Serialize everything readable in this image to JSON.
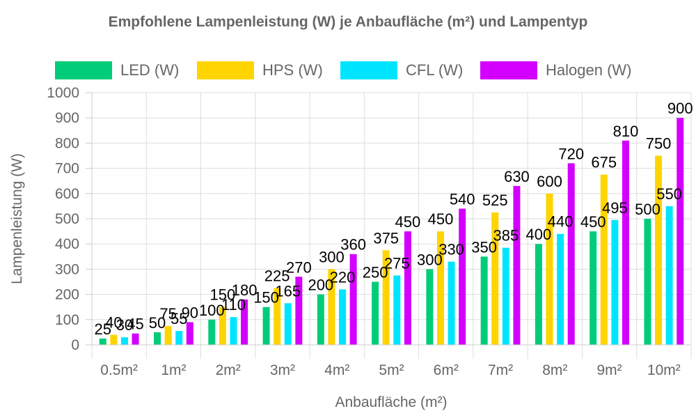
{
  "chart_data": {
    "type": "bar",
    "title": "Empfohlene Lampenleistung (W) je Anbaufläche (m²) und Lampentyp",
    "xlabel": "Anbaufläche (m²)",
    "ylabel": "Lampenleistung (W)",
    "ylim": [
      0,
      1000
    ],
    "y_ticks": [
      "0",
      "100",
      "200",
      "300",
      "400",
      "500",
      "600",
      "700",
      "800",
      "900",
      "1000"
    ],
    "grid": true,
    "legend_position": "top",
    "categories": [
      "0.5m²",
      "1m²",
      "2m²",
      "3m²",
      "4m²",
      "5m²",
      "6m²",
      "7m²",
      "8m²",
      "9m²",
      "10m²"
    ],
    "series": [
      {
        "name": "LED (W)",
        "color": "#00cc7a",
        "values": [
          25,
          50,
          100,
          150,
          200,
          250,
          300,
          350,
          400,
          450,
          500
        ]
      },
      {
        "name": "HPS (W)",
        "color": "#ffd400",
        "values": [
          40,
          75,
          150,
          225,
          300,
          375,
          450,
          525,
          600,
          675,
          750
        ]
      },
      {
        "name": "CFL (W)",
        "color": "#00e5ff",
        "values": [
          30,
          55,
          110,
          165,
          220,
          275,
          330,
          385,
          440,
          495,
          550
        ]
      },
      {
        "name": "Halogen (W)",
        "color": "#d400ff",
        "values": [
          45,
          90,
          180,
          270,
          360,
          450,
          540,
          630,
          720,
          810,
          900
        ]
      }
    ]
  }
}
